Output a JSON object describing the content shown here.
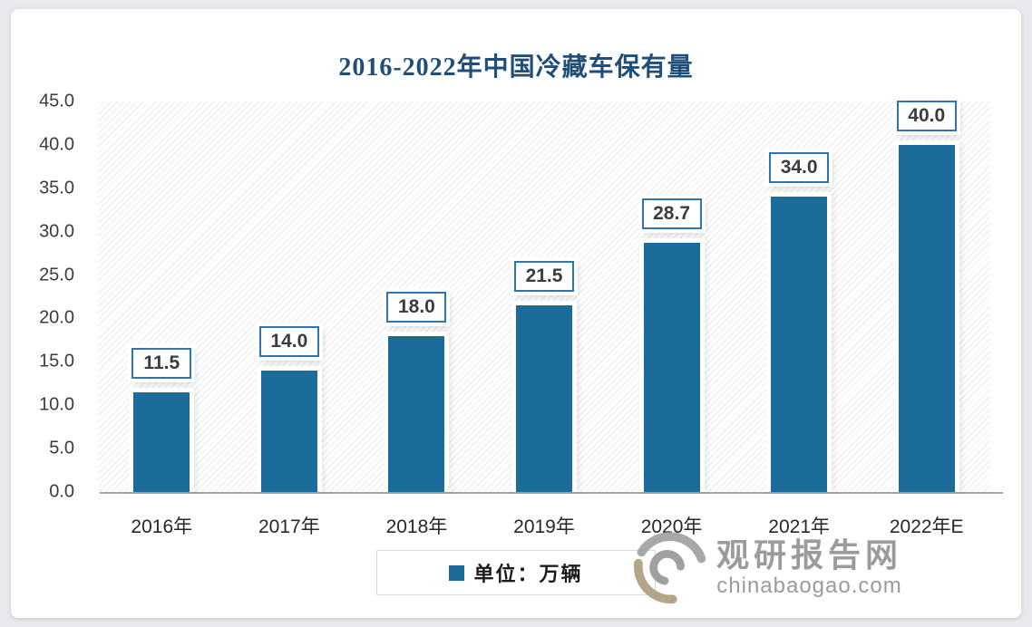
{
  "page": {
    "background_color": "#e8eaee",
    "card_background_color": "#ffffff"
  },
  "chart_data": {
    "type": "bar",
    "title": "2016-2022年中国冷藏车保有量",
    "title_color": "#1F4E79",
    "categories": [
      "2016年",
      "2017年",
      "2018年",
      "2019年",
      "2020年",
      "2021年",
      "2022年E"
    ],
    "values": [
      11.5,
      14.0,
      18.0,
      21.5,
      28.7,
      34.0,
      40.0
    ],
    "value_labels": [
      "11.5",
      "14.0",
      "18.0",
      "21.5",
      "28.7",
      "34.0",
      "40.0"
    ],
    "ylim": [
      0,
      45
    ],
    "ytick_labels": [
      "45.0",
      "40.0",
      "35.0",
      "30.0",
      "25.0",
      "20.0",
      "15.0",
      "10.0",
      "5.0",
      "0.0"
    ],
    "grid": false,
    "plot_background": "diagonal-hatch",
    "bar_color": "#1C6C9B",
    "value_label_border_color": "#2E75B6",
    "legend": {
      "position": "bottom-center",
      "marker_color": "#1C6C9B",
      "label": "单位：万辆"
    }
  },
  "watermark": {
    "logo": "swirl-g-logo",
    "name_cn": "观研报告网",
    "domain": "chinabaogao.com",
    "text_color": "#9b9b9b",
    "logo_gray": "#a8a8a8",
    "logo_tan": "#b5a48c"
  }
}
